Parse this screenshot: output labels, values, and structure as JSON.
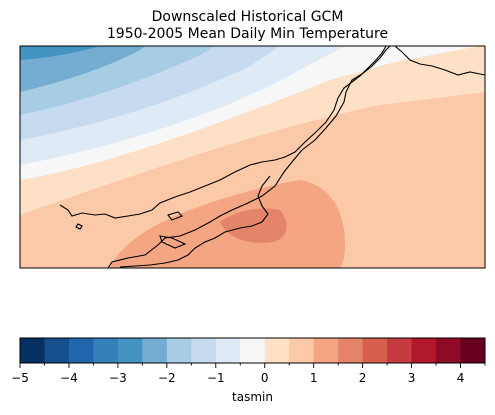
{
  "title": "Downscaled Historical GCM",
  "subtitle": "1950-2005 Mean Daily Min Temperature",
  "colorbar": {
    "label": "tasmin",
    "vmin": -5,
    "vmax": 4.5,
    "step": 0.5,
    "ticks": [
      "−5",
      "−4",
      "−3",
      "−2",
      "−1",
      "0",
      "1",
      "2",
      "3",
      "4"
    ],
    "tick_values": [
      -5,
      -4,
      -3,
      -2,
      -1,
      0,
      1,
      2,
      3,
      4
    ],
    "colors": [
      "#053061",
      "#164f8c",
      "#2166ac",
      "#3480b9",
      "#4393c3",
      "#74add1",
      "#a6cde3",
      "#c6dbef",
      "#deebf7",
      "#f7f7f7",
      "#fde0c5",
      "#fbc8a8",
      "#f4a582",
      "#e4856a",
      "#d6604d",
      "#c53b3f",
      "#b2182b",
      "#8e0a27",
      "#67001f"
    ]
  }
}
